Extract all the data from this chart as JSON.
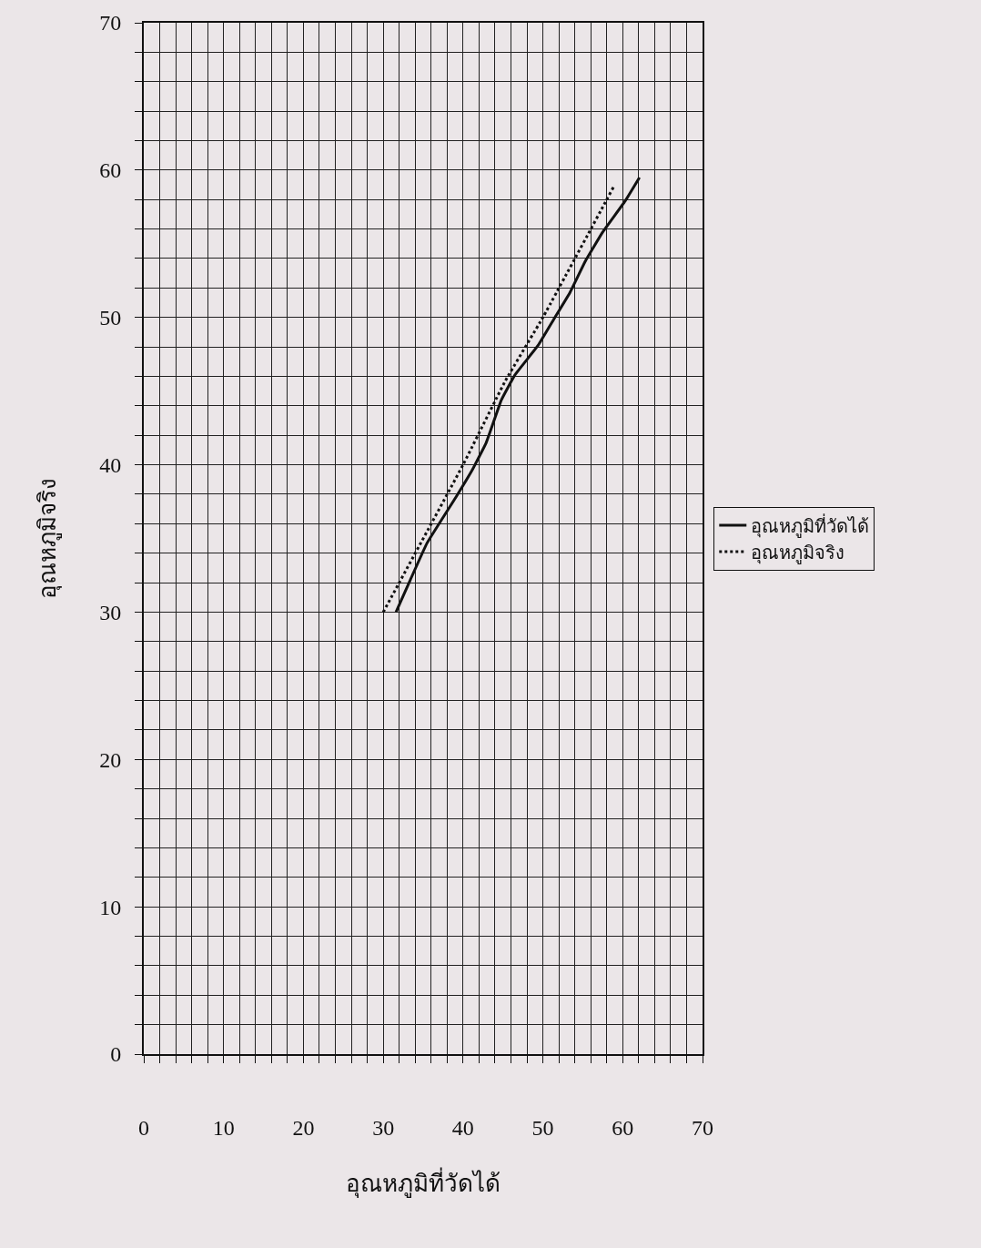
{
  "chart_data": {
    "type": "line",
    "xlabel": "อุณหภูมิที่วัดได้",
    "ylabel": "อุณหภูมิจริง",
    "xlim": [
      0,
      70
    ],
    "ylim": [
      0,
      70
    ],
    "xticks": [
      0,
      {
        "value": 2,
        "label": null
      },
      {
        "value": 4,
        "label": null
      },
      {
        "value": 6,
        "label": null
      },
      {
        "value": 8,
        "label": null
      },
      10,
      {
        "value": 12,
        "label": null
      },
      {
        "value": 14,
        "label": null
      },
      {
        "value": 16,
        "label": null
      },
      {
        "value": 18,
        "label": null
      },
      20,
      {
        "value": 22,
        "label": null
      },
      {
        "value": 24,
        "label": null
      },
      {
        "value": 26,
        "label": null
      },
      {
        "value": 28,
        "label": null
      },
      30,
      {
        "value": 32,
        "label": null
      },
      {
        "value": 34,
        "label": null
      },
      {
        "value": 36,
        "label": null
      },
      {
        "value": 38,
        "label": null
      },
      40,
      {
        "value": 42,
        "label": null
      },
      {
        "value": 44,
        "label": null
      },
      {
        "value": 46,
        "label": null
      },
      {
        "value": 48,
        "label": null
      },
      50,
      {
        "value": 52,
        "label": null
      },
      {
        "value": 54,
        "label": null
      },
      {
        "value": 56,
        "label": null
      },
      {
        "value": 58,
        "label": null
      },
      60,
      {
        "value": 62,
        "label": null
      },
      {
        "value": 64,
        "label": null
      },
      {
        "value": 66,
        "label": null
      },
      {
        "value": 68,
        "label": null
      },
      70
    ],
    "yticks": [
      0,
      {
        "value": 2,
        "label": null
      },
      {
        "value": 4,
        "label": null
      },
      {
        "value": 6,
        "label": null
      },
      {
        "value": 8,
        "label": null
      },
      10,
      {
        "value": 12,
        "label": null
      },
      {
        "value": 14,
        "label": null
      },
      {
        "value": 16,
        "label": null
      },
      {
        "value": 18,
        "label": null
      },
      20,
      {
        "value": 22,
        "label": null
      },
      {
        "value": 24,
        "label": null
      },
      {
        "value": 26,
        "label": null
      },
      {
        "value": 28,
        "label": null
      },
      30,
      {
        "value": 32,
        "label": null
      },
      {
        "value": 34,
        "label": null
      },
      {
        "value": 36,
        "label": null
      },
      {
        "value": 38,
        "label": null
      },
      40,
      {
        "value": 42,
        "label": null
      },
      {
        "value": 44,
        "label": null
      },
      {
        "value": 46,
        "label": null
      },
      {
        "value": 48,
        "label": null
      },
      50,
      {
        "value": 52,
        "label": null
      },
      {
        "value": 54,
        "label": null
      },
      {
        "value": 56,
        "label": null
      },
      {
        "value": 58,
        "label": null
      },
      60,
      {
        "value": 62,
        "label": null
      },
      {
        "value": 64,
        "label": null
      },
      {
        "value": 66,
        "label": null
      },
      {
        "value": 68,
        "label": null
      },
      70
    ],
    "grid": true,
    "legend": "right",
    "marker": "none",
    "series": [
      {
        "name": "อุณหภูมิที่วัดได้",
        "color": "#111111",
        "line_style": "solid",
        "x": [
          31.6,
          33.4,
          35.5,
          39.1,
          41.2,
          42.9,
          44.8,
          46.5,
          49.4,
          51.4,
          53.4,
          55.4,
          57.5,
          60.3,
          62.1
        ],
        "values": [
          30.0,
          32.2,
          34.7,
          37.8,
          39.7,
          41.5,
          44.4,
          46.1,
          48.1,
          49.9,
          51.7,
          53.9,
          55.8,
          57.9,
          59.5
        ]
      },
      {
        "name": "อุณหภูมิจริง",
        "color": "#111111",
        "line_style": "dotted",
        "x": [
          30,
          40,
          45.3,
          50,
          59
        ],
        "values": [
          30,
          40,
          45.7,
          50,
          59
        ]
      }
    ]
  }
}
